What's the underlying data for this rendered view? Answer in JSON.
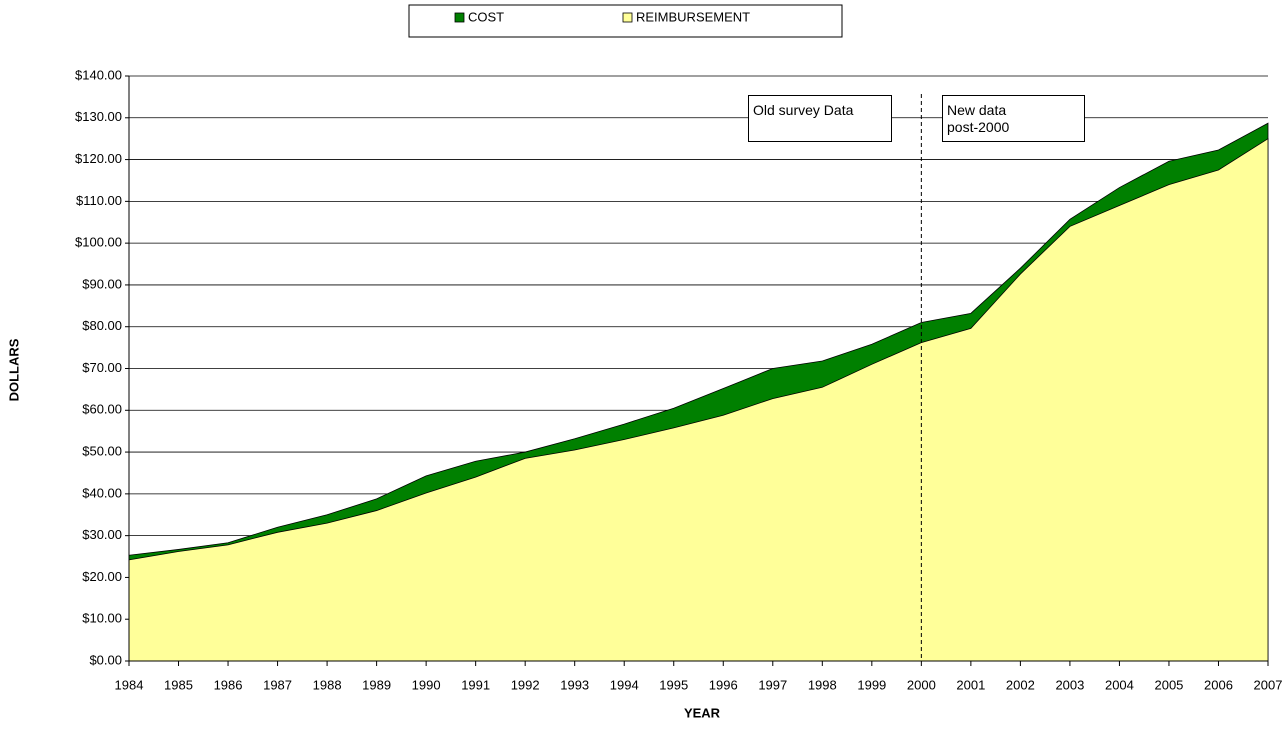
{
  "chart_data": {
    "type": "area",
    "x_label": "YEAR",
    "y_label": "DOLLARS",
    "x": [
      1984,
      1985,
      1986,
      1987,
      1988,
      1989,
      1990,
      1991,
      1992,
      1993,
      1994,
      1995,
      1996,
      1997,
      1998,
      1999,
      2000,
      2001,
      2002,
      2003,
      2004,
      2005,
      2006,
      2007
    ],
    "series": [
      {
        "name": "COST",
        "color": "#008000",
        "values": [
          25.3,
          26.7,
          28.3,
          32.0,
          35.0,
          38.8,
          44.3,
          47.8,
          50.0,
          53.2,
          56.7,
          60.5,
          65.2,
          70.0,
          71.8,
          75.8,
          81.0,
          83.2,
          94.0,
          105.7,
          113.3,
          119.6,
          122.3,
          128.7
        ]
      },
      {
        "name": "REIMBURSEMENT",
        "color": "#ffff99",
        "values": [
          24.2,
          26.2,
          27.8,
          30.8,
          33.0,
          36.0,
          40.2,
          44.0,
          48.5,
          50.5,
          53.0,
          55.8,
          58.8,
          62.8,
          65.5,
          71.0,
          76.2,
          79.6,
          92.6,
          104.0,
          109.0,
          114.0,
          117.5,
          125.0
        ]
      }
    ],
    "xlim": [
      1984,
      2007
    ],
    "xticks": [
      1984,
      1985,
      1986,
      1987,
      1988,
      1989,
      1990,
      1991,
      1992,
      1993,
      1994,
      1995,
      1996,
      1997,
      1998,
      1999,
      2000,
      2001,
      2002,
      2003,
      2004,
      2005,
      2006,
      2007
    ],
    "ylim": [
      0,
      140
    ],
    "yticks": [
      {
        "value": 0,
        "label": "$0.00"
      },
      {
        "value": 10,
        "label": "$10.00"
      },
      {
        "value": 20,
        "label": "$20.00"
      },
      {
        "value": 30,
        "label": "$30.00"
      },
      {
        "value": 40,
        "label": "$40.00"
      },
      {
        "value": 50,
        "label": "$50.00"
      },
      {
        "value": 60,
        "label": "$60.00"
      },
      {
        "value": 70,
        "label": "$70.00"
      },
      {
        "value": 80,
        "label": "$80.00"
      },
      {
        "value": 90,
        "label": "$90.00"
      },
      {
        "value": 100,
        "label": "$100.00"
      },
      {
        "value": 110,
        "label": "$110.00"
      },
      {
        "value": 120,
        "label": "$120.00"
      },
      {
        "value": 130,
        "label": "$130.00"
      },
      {
        "value": 140,
        "label": "$140.00"
      }
    ],
    "grid": true,
    "vline": 2000,
    "annotations": [
      "Old survey Data",
      "New data post-2000"
    ],
    "legend": "top"
  }
}
